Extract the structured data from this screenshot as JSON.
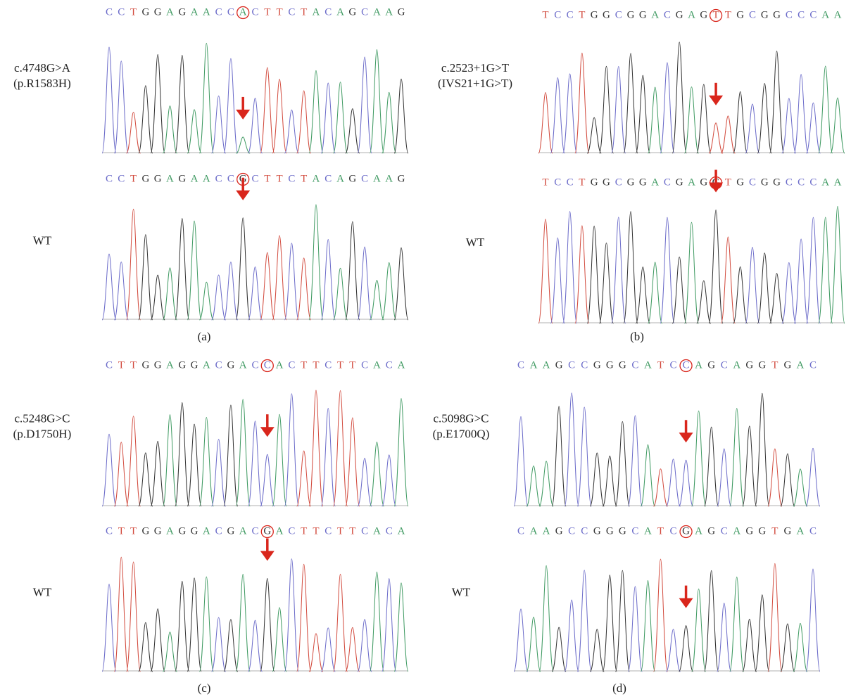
{
  "base_colors": {
    "A": "#3f9a62",
    "C": "#6b6bc9",
    "G": "#333333",
    "T": "#d24b3e"
  },
  "panels": [
    {
      "caption": "(a)",
      "tracks": [
        {
          "label": [
            "c.4748G>A",
            "(p.R1583H)"
          ],
          "sequence": {
            "before": [
              "C",
              "C",
              "T",
              "G",
              "G",
              "A",
              "G",
              "A",
              "A",
              "C",
              "C"
            ],
            "base": "A",
            "after": [
              "C",
              "T",
              "T",
              "C",
              "T",
              "A",
              "C",
              "A",
              "G",
              "C",
              "A",
              "A",
              "G"
            ]
          }
        },
        {
          "label": [
            "WT"
          ],
          "sequence": {
            "before": [
              "C",
              "C",
              "T",
              "G",
              "G",
              "A",
              "G",
              "A",
              "A",
              "C",
              "C"
            ],
            "base": "G",
            "after": [
              "C",
              "T",
              "T",
              "C",
              "T",
              "A",
              "C",
              "A",
              "G",
              "C",
              "A",
              "A",
              "G"
            ]
          }
        }
      ]
    },
    {
      "caption": "(b)",
      "tracks": [
        {
          "label": [
            "c.2523+1G>T",
            "(IVS21+1G>T)"
          ],
          "sequence": {
            "before": [
              "T",
              "C",
              "C",
              "T",
              "G",
              "G",
              "C",
              "G",
              "G",
              "A",
              "C",
              "G",
              "A",
              "G"
            ],
            "base": "T",
            "after": [
              "T",
              "G",
              "C",
              "G",
              "G",
              "C",
              "C",
              "C",
              "A",
              "A"
            ]
          }
        },
        {
          "label": [
            "WT"
          ],
          "sequence": {
            "before": [
              "T",
              "C",
              "C",
              "T",
              "G",
              "G",
              "C",
              "G",
              "G",
              "A",
              "C",
              "G",
              "A",
              "G"
            ],
            "base": "G",
            "after": [
              "T",
              "G",
              "C",
              "G",
              "G",
              "C",
              "C",
              "C",
              "A",
              "A"
            ]
          }
        }
      ]
    },
    {
      "caption": "(c)",
      "tracks": [
        {
          "label": [
            "c.5248G>C",
            "(p.D1750H)"
          ],
          "sequence": {
            "before": [
              "C",
              "T",
              "T",
              "G",
              "G",
              "A",
              "G",
              "G",
              "A",
              "C",
              "G",
              "A",
              "C"
            ],
            "base": "C",
            "after": [
              "A",
              "C",
              "T",
              "T",
              "C",
              "T",
              "T",
              "C",
              "A",
              "C",
              "A"
            ]
          }
        },
        {
          "label": [
            "WT"
          ],
          "sequence": {
            "before": [
              "C",
              "T",
              "T",
              "G",
              "G",
              "A",
              "G",
              "G",
              "A",
              "C",
              "G",
              "A",
              "C"
            ],
            "base": "G",
            "after": [
              "A",
              "C",
              "T",
              "T",
              "C",
              "T",
              "T",
              "C",
              "A",
              "C",
              "A"
            ]
          }
        }
      ]
    },
    {
      "caption": "(d)",
      "tracks": [
        {
          "label": [
            "c.5098G>C",
            "(p.E1700Q)"
          ],
          "sequence": {
            "before": [
              "C",
              "A",
              "A",
              "G",
              "C",
              "C",
              "G",
              "G",
              "G",
              "C",
              "A",
              "T",
              "C"
            ],
            "base": "C",
            "after": [
              "A",
              "G",
              "C",
              "A",
              "G",
              "G",
              "T",
              "G",
              "A",
              "C"
            ]
          }
        },
        {
          "label": [
            "WT"
          ],
          "sequence": {
            "before": [
              "C",
              "A",
              "A",
              "G",
              "C",
              "C",
              "G",
              "G",
              "G",
              "C",
              "A",
              "T",
              "C"
            ],
            "base": "G",
            "after": [
              "A",
              "G",
              "C",
              "A",
              "G",
              "G",
              "T",
              "G",
              "A",
              "C"
            ]
          }
        }
      ]
    }
  ]
}
